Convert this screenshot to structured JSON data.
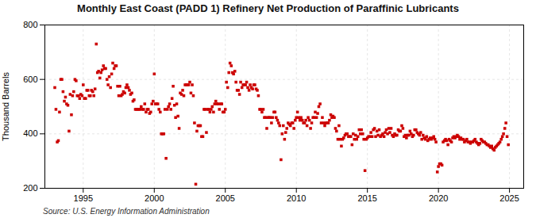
{
  "chart_data": {
    "type": "scatter",
    "title": "Monthly East Coast (PADD 1) Refinery Net Production of Paraffinic Lubricants",
    "ylabel": "Thousand Barrels",
    "source": "Source: U.S. Energy Information Administration",
    "color": "#cc0000",
    "marker": "square",
    "grid": true,
    "xlim": [
      1992.3,
      2026.0
    ],
    "ylim": [
      200,
      800
    ],
    "xticks": [
      1995,
      2000,
      2005,
      2010,
      2015,
      2020,
      2025
    ],
    "yticks": [
      200,
      400,
      600,
      800
    ],
    "x": [
      1993.0,
      1993.08,
      1993.17,
      1993.25,
      1993.33,
      1993.42,
      1993.5,
      1993.58,
      1993.67,
      1993.75,
      1993.83,
      1993.92,
      1994.0,
      1994.08,
      1994.17,
      1994.25,
      1994.33,
      1994.42,
      1994.5,
      1994.58,
      1994.67,
      1994.75,
      1994.83,
      1994.92,
      1995.0,
      1995.08,
      1995.17,
      1995.25,
      1995.33,
      1995.42,
      1995.5,
      1995.58,
      1995.67,
      1995.75,
      1995.83,
      1995.92,
      1996.0,
      1996.08,
      1996.17,
      1996.25,
      1996.33,
      1996.42,
      1996.5,
      1996.58,
      1996.67,
      1996.75,
      1996.83,
      1996.92,
      1997.0,
      1997.08,
      1997.17,
      1997.25,
      1997.33,
      1997.42,
      1997.5,
      1997.58,
      1997.67,
      1997.75,
      1997.83,
      1997.92,
      1998.0,
      1998.08,
      1998.17,
      1998.25,
      1998.33,
      1998.42,
      1998.5,
      1998.58,
      1998.67,
      1998.75,
      1998.83,
      1998.92,
      1999.0,
      1999.08,
      1999.17,
      1999.25,
      1999.33,
      1999.42,
      1999.5,
      1999.58,
      1999.67,
      1999.75,
      1999.83,
      1999.92,
      2000.0,
      2000.08,
      2000.17,
      2000.25,
      2000.33,
      2000.42,
      2000.5,
      2000.58,
      2000.67,
      2000.75,
      2000.83,
      2000.92,
      2001.0,
      2001.08,
      2001.17,
      2001.25,
      2001.33,
      2001.42,
      2001.5,
      2001.58,
      2001.67,
      2001.75,
      2001.83,
      2001.92,
      2002.0,
      2002.08,
      2002.17,
      2002.25,
      2002.33,
      2002.42,
      2002.5,
      2002.58,
      2002.67,
      2002.75,
      2002.83,
      2002.92,
      2003.0,
      2003.08,
      2003.17,
      2003.25,
      2003.33,
      2003.42,
      2003.5,
      2003.58,
      2003.67,
      2003.75,
      2003.83,
      2003.92,
      2004.0,
      2004.08,
      2004.17,
      2004.25,
      2004.33,
      2004.42,
      2004.5,
      2004.58,
      2004.67,
      2004.75,
      2004.83,
      2004.92,
      2005.0,
      2005.08,
      2005.17,
      2005.25,
      2005.33,
      2005.42,
      2005.5,
      2005.58,
      2005.67,
      2005.75,
      2005.83,
      2005.92,
      2006.0,
      2006.08,
      2006.17,
      2006.25,
      2006.33,
      2006.42,
      2006.5,
      2006.58,
      2006.67,
      2006.75,
      2006.83,
      2006.92,
      2007.0,
      2007.08,
      2007.17,
      2007.25,
      2007.33,
      2007.42,
      2007.5,
      2007.58,
      2007.67,
      2007.75,
      2007.83,
      2007.92,
      2008.0,
      2008.08,
      2008.17,
      2008.25,
      2008.33,
      2008.42,
      2008.5,
      2008.58,
      2008.67,
      2008.75,
      2008.83,
      2008.92,
      2009.0,
      2009.08,
      2009.17,
      2009.25,
      2009.33,
      2009.42,
      2009.5,
      2009.58,
      2009.67,
      2009.75,
      2009.83,
      2009.92,
      2010.0,
      2010.08,
      2010.17,
      2010.25,
      2010.33,
      2010.42,
      2010.5,
      2010.58,
      2010.67,
      2010.75,
      2010.83,
      2010.92,
      2011.0,
      2011.08,
      2011.17,
      2011.25,
      2011.33,
      2011.42,
      2011.5,
      2011.58,
      2011.67,
      2011.75,
      2011.83,
      2011.92,
      2012.0,
      2012.08,
      2012.17,
      2012.25,
      2012.33,
      2012.42,
      2012.5,
      2012.58,
      2012.67,
      2012.75,
      2012.83,
      2012.92,
      2013.0,
      2013.08,
      2013.17,
      2013.25,
      2013.33,
      2013.42,
      2013.5,
      2013.58,
      2013.67,
      2013.75,
      2013.83,
      2013.92,
      2014.0,
      2014.08,
      2014.17,
      2014.25,
      2014.33,
      2014.42,
      2014.5,
      2014.58,
      2014.67,
      2014.75,
      2014.83,
      2014.92,
      2015.0,
      2015.08,
      2015.17,
      2015.25,
      2015.33,
      2015.42,
      2015.5,
      2015.58,
      2015.67,
      2015.75,
      2015.83,
      2015.92,
      2016.0,
      2016.08,
      2016.17,
      2016.25,
      2016.33,
      2016.42,
      2016.5,
      2016.58,
      2016.67,
      2016.75,
      2016.83,
      2016.92,
      2017.0,
      2017.08,
      2017.17,
      2017.25,
      2017.33,
      2017.42,
      2017.5,
      2017.58,
      2017.67,
      2017.75,
      2017.83,
      2017.92,
      2018.0,
      2018.08,
      2018.17,
      2018.25,
      2018.33,
      2018.42,
      2018.5,
      2018.58,
      2018.67,
      2018.75,
      2018.83,
      2018.92,
      2019.0,
      2019.08,
      2019.17,
      2019.25,
      2019.33,
      2019.42,
      2019.5,
      2019.58,
      2019.67,
      2019.75,
      2019.83,
      2019.92,
      2020.0,
      2020.08,
      2020.17,
      2020.25,
      2020.33,
      2020.42,
      2020.5,
      2020.58,
      2020.67,
      2020.75,
      2020.83,
      2020.92,
      2021.0,
      2021.08,
      2021.17,
      2021.25,
      2021.33,
      2021.42,
      2021.5,
      2021.58,
      2021.67,
      2021.75,
      2021.83,
      2021.92,
      2022.0,
      2022.08,
      2022.17,
      2022.25,
      2022.33,
      2022.42,
      2022.5,
      2022.58,
      2022.67,
      2022.75,
      2022.83,
      2022.92,
      2023.0,
      2023.08,
      2023.17,
      2023.25,
      2023.33,
      2023.42,
      2023.5,
      2023.58,
      2023.67,
      2023.75,
      2023.83,
      2023.92,
      2024.0,
      2024.08,
      2024.17,
      2024.25,
      2024.33,
      2024.42,
      2024.5,
      2024.58,
      2024.67,
      2024.75,
      2024.83,
      2024.92
    ],
    "values": [
      570,
      490,
      370,
      375,
      480,
      600,
      600,
      555,
      520,
      535,
      510,
      505,
      410,
      545,
      470,
      540,
      555,
      600,
      595,
      540,
      540,
      530,
      545,
      540,
      580,
      530,
      530,
      560,
      560,
      540,
      540,
      560,
      555,
      540,
      565,
      730,
      625,
      630,
      605,
      625,
      635,
      650,
      640,
      640,
      600,
      580,
      610,
      570,
      620,
      660,
      640,
      650,
      650,
      575,
      540,
      575,
      540,
      545,
      555,
      550,
      570,
      580,
      570,
      560,
      545,
      550,
      520,
      525,
      490,
      490,
      490,
      490,
      490,
      500,
      490,
      490,
      510,
      480,
      490,
      490,
      475,
      480,
      510,
      520,
      620,
      510,
      510,
      510,
      490,
      480,
      400,
      400,
      400,
      490,
      310,
      490,
      500,
      510,
      490,
      530,
      575,
      505,
      460,
      510,
      465,
      420,
      550,
      545,
      560,
      540,
      580,
      580,
      580,
      580,
      590,
      550,
      580,
      540,
      440,
      215,
      410,
      430,
      430,
      430,
      390,
      390,
      490,
      490,
      405,
      490,
      490,
      480,
      490,
      500,
      480,
      510,
      520,
      510,
      510,
      490,
      510,
      510,
      480,
      480,
      490,
      590,
      570,
      625,
      660,
      650,
      625,
      620,
      630,
      590,
      560,
      560,
      545,
      590,
      570,
      580,
      580,
      580,
      590,
      570,
      560,
      580,
      570,
      565,
      580,
      580,
      565,
      560,
      540,
      490,
      490,
      480,
      490,
      460,
      460,
      420,
      460,
      460,
      460,
      440,
      460,
      480,
      480,
      460,
      450,
      440,
      430,
      305,
      400,
      430,
      380,
      405,
      420,
      440,
      435,
      430,
      440,
      440,
      420,
      450,
      460,
      480,
      460,
      450,
      460,
      450,
      440,
      440,
      450,
      430,
      460,
      450,
      420,
      440,
      460,
      460,
      480,
      460,
      475,
      500,
      510,
      440,
      460,
      440,
      430,
      440,
      440,
      440,
      450,
      470,
      460,
      465,
      460,
      420,
      410,
      380,
      430,
      380,
      355,
      380,
      385,
      395,
      400,
      400,
      390,
      390,
      390,
      360,
      400,
      380,
      395,
      380,
      390,
      415,
      400,
      415,
      400,
      380,
      265,
      380,
      385,
      390,
      390,
      405,
      390,
      415,
      420,
      390,
      410,
      395,
      415,
      390,
      395,
      400,
      390,
      405,
      415,
      400,
      420,
      405,
      420,
      395,
      390,
      400,
      395,
      395,
      415,
      410,
      410,
      430,
      420,
      390,
      395,
      385,
      395,
      395,
      410,
      400,
      390,
      395,
      415,
      415,
      405,
      400,
      395,
      405,
      380,
      395,
      385,
      380,
      390,
      375,
      380,
      385,
      380,
      385,
      390,
      380,
      370,
      260,
      280,
      290,
      290,
      285,
      370,
      375,
      380,
      375,
      360,
      380,
      375,
      370,
      385,
      390,
      385,
      390,
      395,
      390,
      380,
      385,
      380,
      380,
      370,
      375,
      380,
      370,
      370,
      365,
      370,
      370,
      375,
      380,
      370,
      365,
      360,
      365,
      380,
      375,
      370,
      370,
      365,
      360,
      360,
      355,
      350,
      355,
      345,
      340,
      350,
      355,
      360,
      365,
      370,
      380,
      390,
      400,
      420,
      440,
      390,
      360
    ]
  }
}
